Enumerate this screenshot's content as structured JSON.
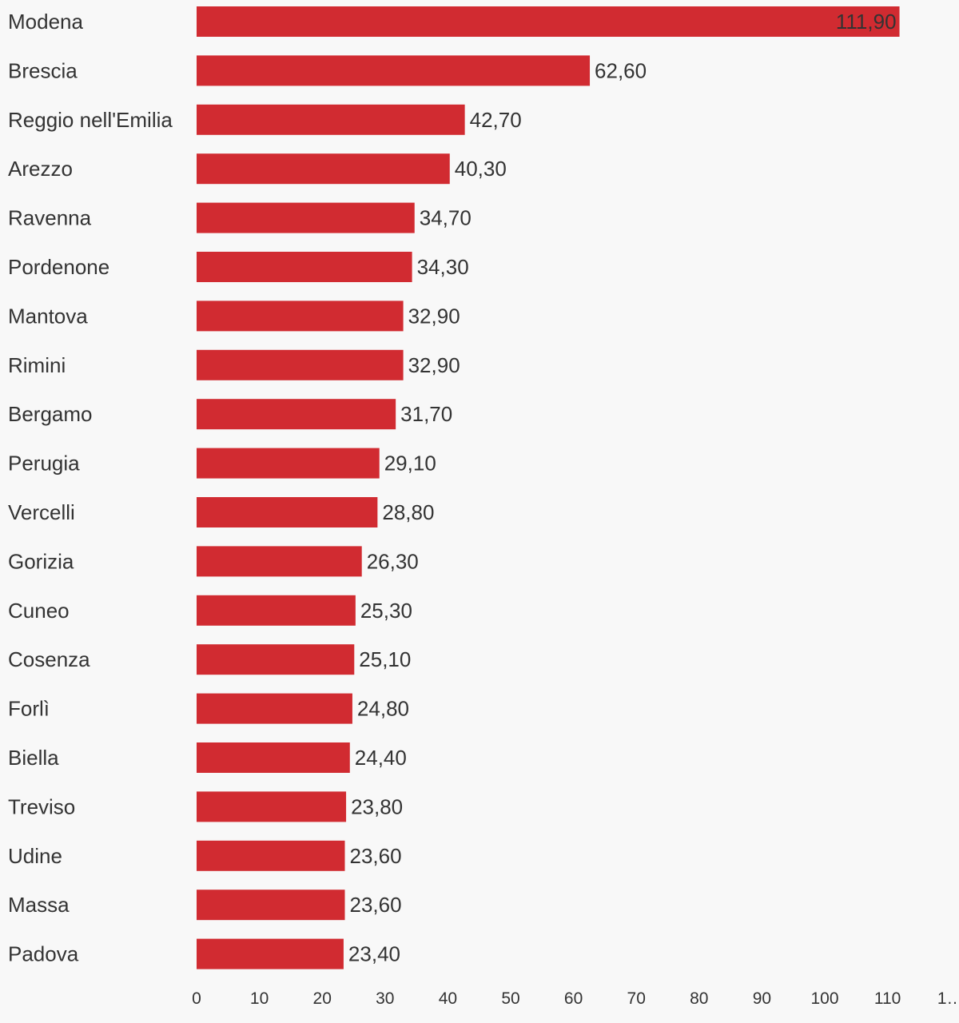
{
  "chart_data": {
    "type": "bar",
    "orientation": "horizontal",
    "categories": [
      "Modena",
      "Brescia",
      "Reggio nell'Emilia",
      "Arezzo",
      "Ravenna",
      "Pordenone",
      "Mantova",
      "Rimini",
      "Bergamo",
      "Perugia",
      "Vercelli",
      "Gorizia",
      "Cuneo",
      "Cosenza",
      "Forlì",
      "Biella",
      "Treviso",
      "Udine",
      "Massa",
      "Padova"
    ],
    "values": [
      111.9,
      62.6,
      42.7,
      40.3,
      34.7,
      34.3,
      32.9,
      32.9,
      31.7,
      29.1,
      28.8,
      26.3,
      25.3,
      25.1,
      24.8,
      24.4,
      23.8,
      23.6,
      23.6,
      23.4
    ],
    "value_labels": [
      "111,90",
      "62,60",
      "42,70",
      "40,30",
      "34,70",
      "34,30",
      "32,90",
      "32,90",
      "31,70",
      "29,10",
      "28,80",
      "26,30",
      "25,30",
      "25,10",
      "24,80",
      "24,40",
      "23,80",
      "23,60",
      "23,60",
      "23,40"
    ],
    "xticks": [
      "0",
      "10",
      "20",
      "30",
      "40",
      "50",
      "60",
      "70",
      "80",
      "90",
      "100",
      "110",
      "1…"
    ],
    "xlim": [
      0,
      120
    ],
    "title": "",
    "xlabel": "",
    "ylabel": "",
    "grid": false,
    "colors": {
      "bar": "#d12b31",
      "text": "#333333",
      "background": "#f8f8f8"
    }
  }
}
